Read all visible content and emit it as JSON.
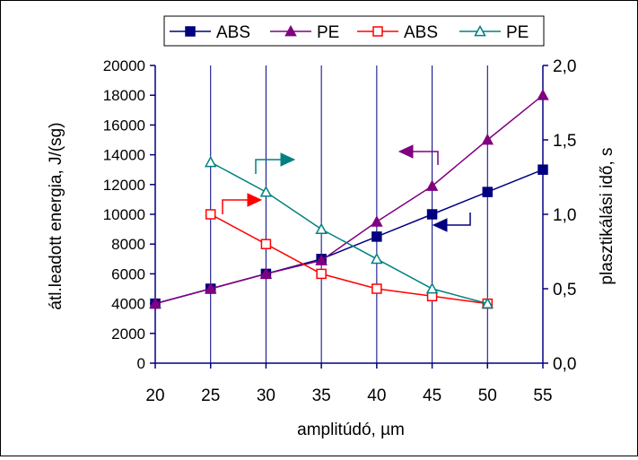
{
  "chart_data": {
    "type": "line",
    "xlabel": "amplitúdó,  µm",
    "ylabel": "átl.leadott energia, J/(sg)",
    "y2label": "plasztikálási idő, s",
    "xlim": [
      20,
      55
    ],
    "ylim": [
      0,
      20000
    ],
    "y2lim": [
      0,
      2.0
    ],
    "x_ticks": [
      "20",
      "25",
      "30",
      "35",
      "40",
      "45",
      "50",
      "55"
    ],
    "y_ticks": [
      "0",
      "2000",
      "4000",
      "6000",
      "8000",
      "10000",
      "12000",
      "14000",
      "16000",
      "18000",
      "20000"
    ],
    "y2_ticks": [
      "0,0",
      "0,5",
      "1,0",
      "1,5",
      "2,0"
    ],
    "grid": "vertical",
    "legend_position": "top",
    "series": [
      {
        "name": "ABS",
        "axis": "left",
        "color": "#000080",
        "marker": "square-filled",
        "x": [
          20,
          25,
          30,
          35,
          40,
          45,
          50,
          55
        ],
        "values": [
          4000,
          5000,
          6000,
          7000,
          8500,
          10000,
          11500,
          13000
        ]
      },
      {
        "name": "PE",
        "axis": "left",
        "color": "#800080",
        "marker": "triangle-filled",
        "x": [
          20,
          25,
          30,
          35,
          40,
          45,
          50,
          55
        ],
        "values": [
          4000,
          5000,
          6000,
          6900,
          9500,
          11900,
          15000,
          18000
        ]
      },
      {
        "name": "ABS",
        "axis": "right",
        "color": "#ff0000",
        "marker": "square-open",
        "x": [
          25,
          30,
          35,
          40,
          45,
          50
        ],
        "values": [
          1.0,
          0.8,
          0.6,
          0.5,
          0.45,
          0.4
        ]
      },
      {
        "name": "PE",
        "axis": "right",
        "color": "#008080",
        "marker": "triangle-open",
        "x": [
          25,
          30,
          35,
          40,
          45,
          50
        ],
        "values": [
          1.35,
          1.15,
          0.9,
          0.7,
          0.5,
          0.4
        ]
      }
    ],
    "annotations": [
      {
        "type": "axis-indicator-arrow",
        "series": "PE (left axis)",
        "color": "#800080",
        "direction": "left"
      },
      {
        "type": "axis-indicator-arrow",
        "series": "ABS (left axis)",
        "color": "#000080",
        "direction": "left"
      },
      {
        "type": "axis-indicator-arrow",
        "series": "ABS (right axis)",
        "color": "#ff0000",
        "direction": "right"
      },
      {
        "type": "axis-indicator-arrow",
        "series": "PE (right axis)",
        "color": "#008080",
        "direction": "right"
      }
    ]
  }
}
